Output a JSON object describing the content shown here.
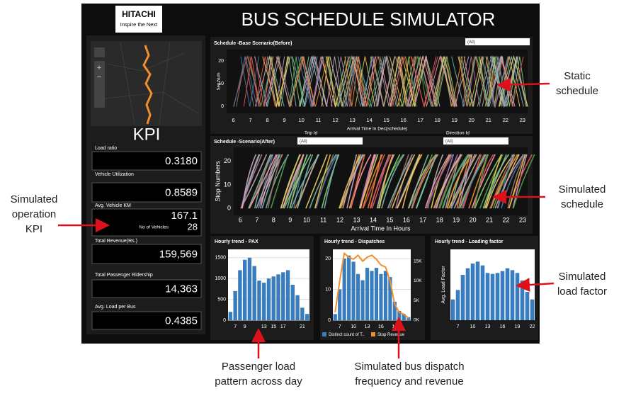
{
  "header": {
    "logo": [
      "HITACHI",
      "Inspire the Next"
    ],
    "title": "BUS SCHEDULE SIMULATOR"
  },
  "kpi": {
    "title": "KPI",
    "items": [
      {
        "label": "Load ratio",
        "value": "0.3180"
      },
      {
        "label": "Vehicle Utilization",
        "value": "0.8589"
      },
      {
        "label": "Avg. Vehicle KM",
        "value": "167.1",
        "sub_label": "No of Vehicles",
        "sub_value": "28"
      },
      {
        "label": "Total Revenue(Rs.)",
        "value": "159,569"
      },
      {
        "label": "Total Passenger Ridership",
        "value": "14,363"
      },
      {
        "label": "Avg. Load per Bus",
        "value": "0.4385"
      }
    ]
  },
  "schedules": [
    {
      "title": "Schedule -Base Scenario(Before)",
      "filter": "(All)",
      "ylabel": "Seq Num",
      "xlabel": "Arrival Time In Dec(schedule)",
      "xlim": [
        5.6,
        23.3
      ],
      "xticks": [
        6,
        7,
        8,
        9,
        10,
        11,
        12,
        13,
        14,
        15,
        16,
        17,
        18,
        19,
        20,
        21,
        22,
        23
      ],
      "ylim": [
        -3,
        25
      ],
      "yticks": [
        0,
        10,
        20
      ]
    },
    {
      "title": "Schedule -Scenario(After)",
      "ylabel": "Stop Numbers",
      "xlabel": "Arrival Time In Hours",
      "xlim": [
        5.6,
        23.3
      ],
      "xticks": [
        6,
        7,
        8,
        9,
        10,
        11,
        12,
        13,
        14,
        15,
        16,
        17,
        18,
        19,
        20,
        21,
        22,
        23
      ],
      "ylim": [
        -3,
        26
      ],
      "yticks": [
        0,
        10,
        20
      ]
    }
  ],
  "filters": [
    {
      "label": "Trip Id",
      "value": "(All)"
    },
    {
      "label": "Direction Id",
      "value": "(All)"
    }
  ],
  "charts": [
    {
      "type": "bar",
      "title": "Hourly trend - PAX",
      "color": "#3a7dbf",
      "categories": [
        null,
        "7",
        null,
        "9",
        null,
        null,
        null,
        "13",
        null,
        "15",
        null,
        "17",
        null,
        null,
        null,
        "21",
        null
      ],
      "values": [
        200,
        700,
        1200,
        1450,
        1500,
        1300,
        950,
        900,
        1000,
        1050,
        1100,
        1150,
        1200,
        850,
        600,
        300,
        150
      ],
      "ylim": [
        0,
        1700
      ],
      "yticks": [
        0,
        500,
        1000,
        1500
      ]
    },
    {
      "type": "bar",
      "title": "Hourly trend - Dispatches",
      "categories": [
        null,
        "7",
        null,
        null,
        "10",
        null,
        null,
        "13",
        null,
        null,
        "16",
        null,
        null,
        "19",
        null,
        null,
        null
      ],
      "series": [
        {
          "name": "Distinct count of T..",
          "color": "#3a7dbf",
          "values": [
            2,
            10,
            20,
            21,
            19,
            15,
            13,
            17,
            16,
            17,
            15,
            16,
            14,
            6,
            3,
            2,
            1
          ]
        },
        {
          "name": "Stop Revenue",
          "color": "#f28e2b",
          "axis": "y2",
          "values": [
            2000,
            10000,
            17000,
            16000,
            15500,
            16500,
            15000,
            16000,
            16500,
            15500,
            14000,
            13500,
            10000,
            4000,
            2000,
            1500,
            500
          ]
        }
      ],
      "ylim": [
        0,
        23
      ],
      "yticks": [
        0,
        10,
        20
      ],
      "y2lim": [
        0,
        18000
      ],
      "y2ticks": [
        {
          "value": 0,
          "label": "0K"
        },
        {
          "value": 5000,
          "label": "5K"
        },
        {
          "value": 10000,
          "label": "10K"
        },
        {
          "value": 15000,
          "label": "15K"
        }
      ]
    },
    {
      "type": "bar",
      "title": "Hourly trend - Loading factor",
      "ylabel": "Avg. Load Factor",
      "color": "#3a7dbf",
      "categories": [
        null,
        "7",
        null,
        null,
        "10",
        null,
        null,
        "13",
        null,
        null,
        "16",
        null,
        null,
        "19",
        null,
        null,
        "22"
      ],
      "values": [
        0.22,
        0.32,
        0.48,
        0.55,
        0.6,
        0.62,
        0.58,
        0.5,
        0.49,
        0.5,
        0.52,
        0.55,
        0.53,
        0.5,
        0.42,
        0.3,
        0.22
      ],
      "ylim": [
        0,
        0.75
      ]
    }
  ],
  "annotations": [
    {
      "lines": [
        "Static",
        "schedule"
      ]
    },
    {
      "lines": [
        "Simulated",
        "schedule"
      ]
    },
    {
      "lines": [
        "Simulated",
        "operation",
        "KPI"
      ]
    },
    {
      "lines": [
        "Simulated",
        "load factor"
      ]
    },
    {
      "lines": [
        "Passenger load",
        "pattern across day"
      ]
    },
    {
      "lines": [
        "Simulated bus dispatch",
        "frequency and revenue"
      ]
    }
  ]
}
